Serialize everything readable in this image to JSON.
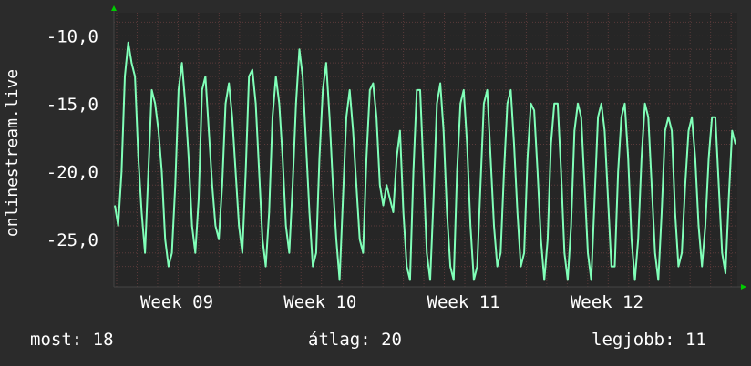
{
  "chart_data": {
    "type": "line",
    "ylabel": "onlinestream.live",
    "ylim": [
      -28.5,
      -8.3
    ],
    "yticks": [
      -10,
      -15,
      -20,
      -25
    ],
    "ytick_labels": [
      "-10,0",
      "-15,0",
      "-20,0",
      "-25,0"
    ],
    "xticks": [
      "Week 09",
      "Week 10",
      "Week 11",
      "Week 12"
    ],
    "grid": true,
    "colors": {
      "line": "#80ffb8",
      "background": "#2b2b2b",
      "plot_bg": "#262626",
      "grid": "#5a3a3a",
      "axis_arrow": "#00cc00"
    },
    "series": [
      {
        "values": [
          -22.5,
          -24,
          -20,
          -13,
          -10.5,
          -12,
          -13,
          -19,
          -23,
          -26,
          -20,
          -14,
          -15,
          -17,
          -20,
          -25,
          -27,
          -26,
          -21,
          -14,
          -12,
          -15,
          -19,
          -24,
          -26,
          -22,
          -14,
          -13,
          -17,
          -21,
          -24,
          -25,
          -21,
          -15,
          -13.5,
          -16,
          -20,
          -24,
          -26,
          -20,
          -13,
          -12.5,
          -15,
          -20,
          -25,
          -27,
          -23,
          -16,
          -13,
          -15,
          -19,
          -24,
          -26,
          -21,
          -15,
          -11,
          -13,
          -18,
          -23,
          -27,
          -26,
          -19,
          -14,
          -12,
          -16,
          -21,
          -25,
          -28,
          -22,
          -16,
          -14,
          -17,
          -21,
          -25,
          -26,
          -19,
          -14,
          -13.5,
          -16,
          -21,
          -22.5,
          -21,
          -22,
          -23,
          -19,
          -17,
          -23,
          -27,
          -28,
          -20,
          -14,
          -14,
          -20,
          -26,
          -28,
          -22,
          -15,
          -13.5,
          -17,
          -23,
          -27,
          -28,
          -20,
          -15,
          -14,
          -18,
          -24,
          -28,
          -27,
          -21,
          -15,
          -14,
          -19,
          -24,
          -27,
          -26,
          -20,
          -15,
          -14,
          -18,
          -23,
          -27,
          -26,
          -19,
          -15,
          -15.5,
          -20,
          -25,
          -28,
          -25,
          -18,
          -15,
          -15,
          -20,
          -26,
          -28,
          -24,
          -17,
          -15,
          -16,
          -21,
          -26,
          -28,
          -22,
          -16,
          -15,
          -17,
          -22,
          -27,
          -27,
          -20,
          -16,
          -15,
          -19,
          -25,
          -28,
          -25,
          -19,
          -15,
          -16,
          -21,
          -26,
          -28,
          -23,
          -17,
          -16,
          -17,
          -23,
          -27,
          -26,
          -21,
          -17,
          -16,
          -19,
          -24,
          -27,
          -24,
          -19,
          -16,
          -16,
          -21,
          -26,
          -27.5,
          -22,
          -17,
          -18
        ]
      }
    ]
  },
  "footer": {
    "current": "most: 18",
    "average": "átlag: 20",
    "best": "legjobb: 11"
  }
}
